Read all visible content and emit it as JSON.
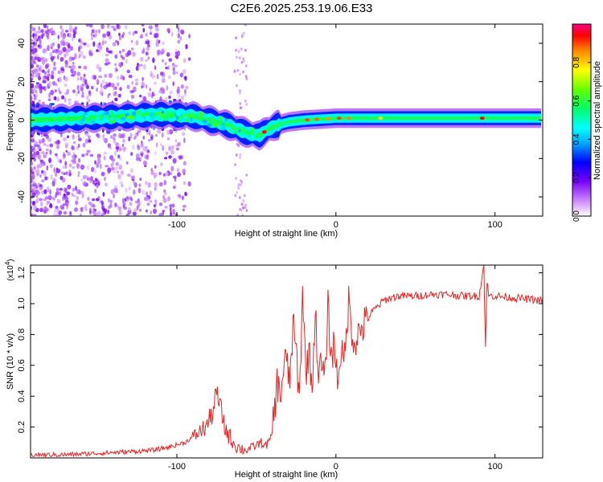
{
  "title": "C2E6.2025.253.19.06.E33",
  "colors": {
    "snr_line": "#ee2222",
    "colorbar": [
      "#ffffff",
      "#cc88ff",
      "#7a00ff",
      "#0000ff",
      "#00aaff",
      "#00ffff",
      "#00ff66",
      "#66ff00",
      "#ffff00",
      "#ff8800",
      "#ff0000",
      "#ff0088"
    ]
  },
  "chart_data": [
    {
      "type": "heatmap",
      "name": "spectrogram",
      "xlabel": "Height of straight line (km)",
      "ylabel": "Frequency (Hz)",
      "xlim": [
        -192,
        130
      ],
      "ylim": [
        -50,
        50
      ],
      "xticks": [
        -100,
        0,
        100
      ],
      "xtick_labels": [
        "-100",
        "0",
        "100"
      ],
      "yticks": [
        -40,
        -20,
        0,
        20,
        40
      ],
      "ytick_labels": [
        "-40",
        "-20",
        "0",
        "20",
        "40"
      ],
      "ridge": {
        "x": [
          -192,
          -160,
          -130,
          -110,
          -90,
          -70,
          -55,
          -48,
          -43,
          -38,
          -30,
          -20,
          -10,
          0,
          20,
          60,
          100,
          130
        ],
        "y": [
          0,
          1,
          2,
          3,
          2,
          -2,
          -7,
          -8,
          -5,
          -3,
          -1,
          0,
          0.5,
          1,
          1,
          1,
          1,
          1
        ]
      },
      "colorbar": {
        "label": "Normalized spectral amplitude",
        "range": [
          0,
          1
        ],
        "ticks": [
          0,
          0.2,
          0.4,
          0.6,
          0.8
        ],
        "tick_labels": [
          "0.0",
          "0.2",
          "0.4",
          "0.6",
          "0.8"
        ]
      }
    },
    {
      "type": "line",
      "name": "snr",
      "xlabel": "Height of straight line (km)",
      "ylabel": "SNR (10 * v/v)",
      "scale_label": "(x10",
      "scale_exponent": "4",
      "scale_suffix": ")",
      "xlim": [
        -192,
        130
      ],
      "ylim": [
        0,
        1.25
      ],
      "xticks": [
        -100,
        0,
        100
      ],
      "xtick_labels": [
        "-100",
        "0",
        "100"
      ],
      "yticks": [
        0.2,
        0.4,
        0.6,
        0.8,
        1.0,
        1.2
      ],
      "ytick_labels": [
        "0.2",
        "0.4",
        "0.6",
        "0.8",
        "1.0",
        "1.2"
      ],
      "series": [
        {
          "name": "SNR",
          "x": [
            -192,
            -170,
            -150,
            -130,
            -115,
            -105,
            -95,
            -88,
            -82,
            -78,
            -75,
            -72,
            -70,
            -66,
            -62,
            -57,
            -52,
            -47,
            -44,
            -41,
            -39,
            -37,
            -35,
            -32,
            -29,
            -27,
            -25,
            -23,
            -21,
            -19,
            -17,
            -15,
            -13,
            -11,
            -9,
            -7,
            -5,
            -3,
            -1,
            1,
            3,
            5,
            8,
            11,
            14,
            17,
            20,
            23,
            26,
            30,
            35,
            40,
            50,
            60,
            70,
            80,
            90,
            93,
            94,
            95,
            96,
            100,
            110,
            120,
            130
          ],
          "y": [
            0.02,
            0.02,
            0.03,
            0.04,
            0.05,
            0.07,
            0.1,
            0.15,
            0.2,
            0.28,
            0.42,
            0.3,
            0.2,
            0.12,
            0.07,
            0.05,
            0.07,
            0.1,
            0.08,
            0.12,
            0.28,
            0.48,
            0.4,
            0.65,
            0.5,
            0.85,
            0.7,
            0.35,
            1.1,
            0.55,
            0.7,
            0.45,
            0.95,
            0.55,
            0.6,
            0.5,
            0.98,
            0.65,
            0.75,
            0.5,
            0.7,
            0.6,
            1.02,
            0.75,
            0.8,
            0.85,
            0.9,
            0.95,
            0.98,
            1.02,
            1.04,
            1.05,
            1.05,
            1.06,
            1.06,
            1.05,
            1.05,
            1.25,
            0.72,
            1.15,
            1.05,
            1.05,
            1.04,
            1.03,
            1.02
          ]
        }
      ]
    }
  ]
}
